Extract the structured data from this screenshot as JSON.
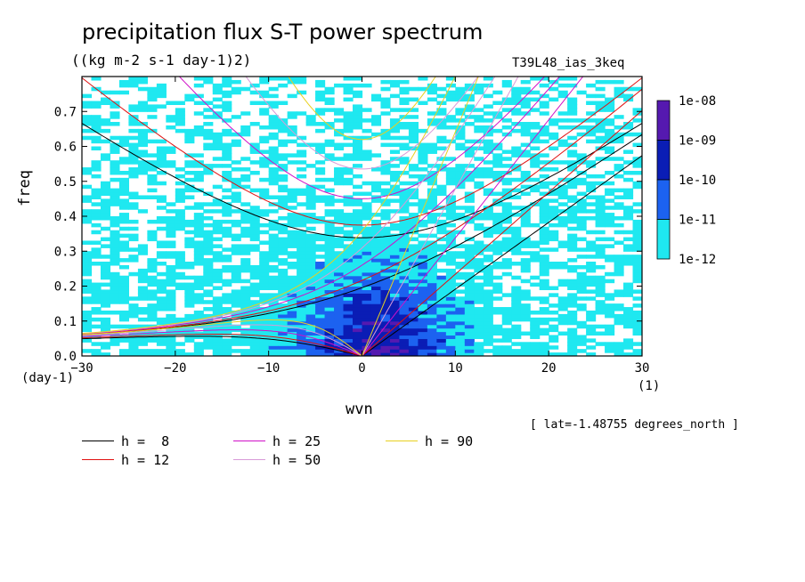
{
  "chart_data": {
    "type": "heatmap",
    "title": "precipitation flux S-T power spectrum",
    "subtitle": "((kg m-2 s-1 day-1)2)",
    "run_label": "T39L48_ias_3keq",
    "xlabel": "wvn",
    "ylabel": "freq",
    "x_unit": "(1)",
    "y_unit": "(day-1)",
    "xlim": [
      -30,
      30
    ],
    "ylim": [
      0,
      0.8
    ],
    "x_ticks": [
      "-30",
      "-20",
      "-10",
      "0",
      "10",
      "20",
      "30"
    ],
    "y_ticks": [
      "0.0",
      "0.1",
      "0.2",
      "0.3",
      "0.4",
      "0.5",
      "0.6",
      "0.7"
    ],
    "annotation": "[ lat=-1.48755 degrees_north ]",
    "colorbar": {
      "labels": [
        "1e-08",
        "1e-09",
        "1e-10",
        "1e-11",
        "1e-12"
      ],
      "colors": [
        "#5519b0",
        "#0a1db5",
        "#1c62f0",
        "#1fe8f0"
      ]
    },
    "dispersion_curves": [
      {
        "label": "h =  8",
        "h": 8,
        "color": "#000000"
      },
      {
        "label": "h = 12",
        "h": 12,
        "color": "#e01010"
      },
      {
        "label": "h = 25",
        "h": 25,
        "color": "#d010c8"
      },
      {
        "label": "h = 50",
        "h": 50,
        "color": "#d89ad8"
      },
      {
        "label": "h = 90",
        "h": 90,
        "color": "#e8d020"
      }
    ]
  }
}
